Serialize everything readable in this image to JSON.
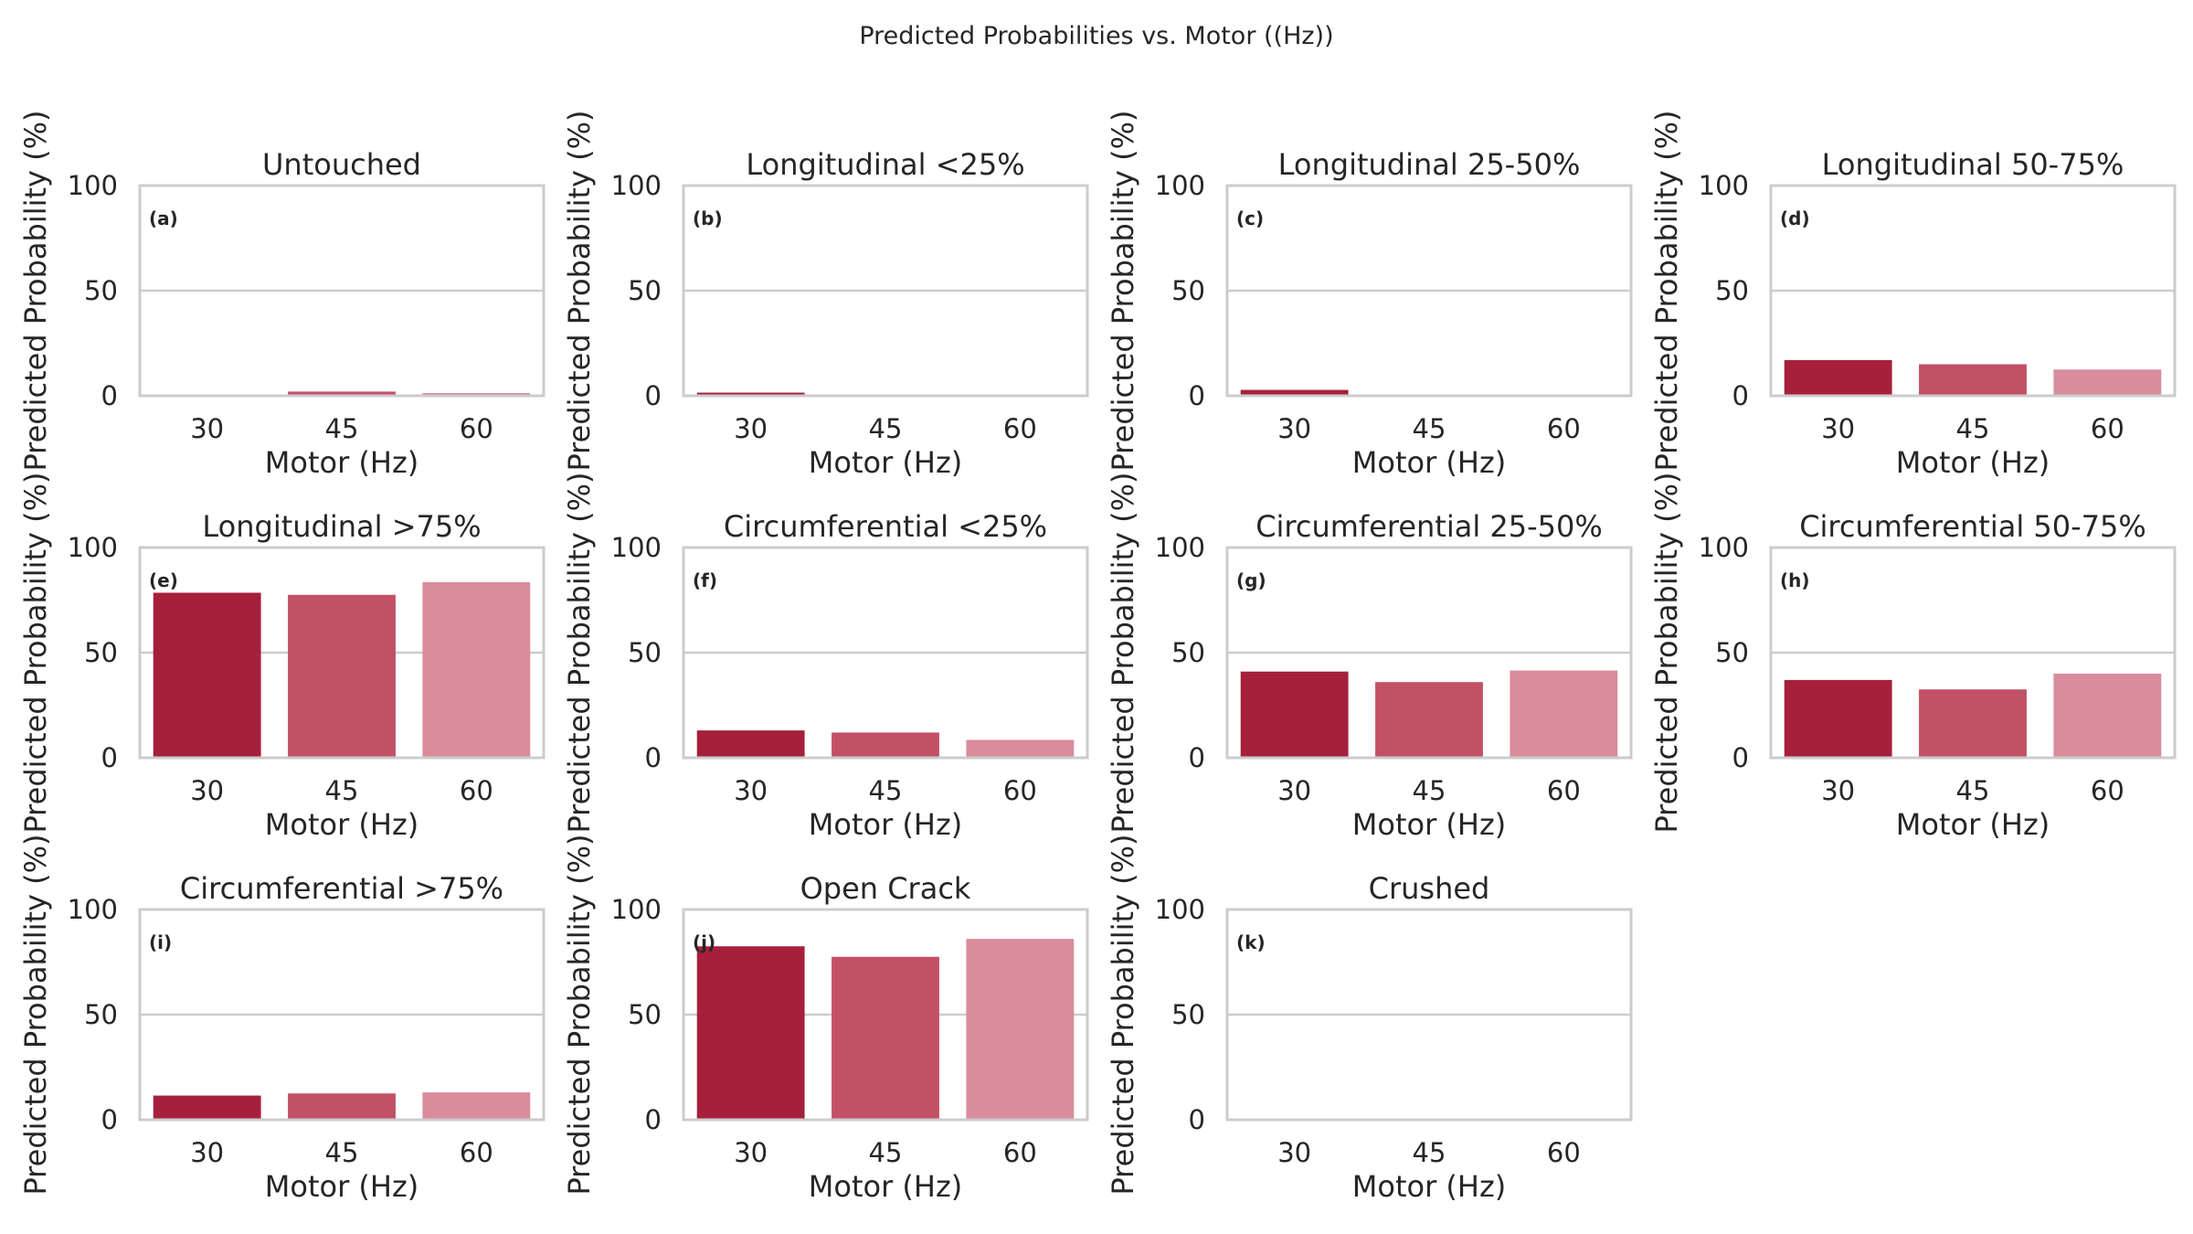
{
  "figure": {
    "suptitle": "Predicted Probabilities vs. Motor ((Hz))"
  },
  "chart_data": [
    {
      "type": "bar",
      "title": "Untouched",
      "panel_label": "(a)",
      "xlabel": "Motor (Hz)",
      "ylabel": "Predicted Probability (%)",
      "categories": [
        "30",
        "45",
        "60"
      ],
      "values": [
        0.4,
        2.0,
        1.3
      ],
      "ylim": [
        0,
        100
      ],
      "yticks": [
        0,
        50,
        100
      ],
      "grid": true,
      "colors": [
        "#a6203c",
        "#c25166",
        "#d98c9c"
      ]
    },
    {
      "type": "bar",
      "title": "Longitudinal <25%",
      "panel_label": "(b)",
      "xlabel": "Motor (Hz)",
      "ylabel": "Predicted Probability (%)",
      "categories": [
        "30",
        "45",
        "60"
      ],
      "values": [
        1.5,
        0.3,
        0.3
      ],
      "ylim": [
        0,
        100
      ],
      "yticks": [
        0,
        50,
        100
      ],
      "grid": true,
      "colors": [
        "#a6203c",
        "#c25166",
        "#d98c9c"
      ]
    },
    {
      "type": "bar",
      "title": "Longitudinal 25-50%",
      "panel_label": "(c)",
      "xlabel": "Motor (Hz)",
      "ylabel": "Predicted Probability (%)",
      "categories": [
        "30",
        "45",
        "60"
      ],
      "values": [
        2.8,
        0.2,
        0.2
      ],
      "ylim": [
        0,
        100
      ],
      "yticks": [
        0,
        50,
        100
      ],
      "grid": true,
      "colors": [
        "#a6203c",
        "#c25166",
        "#d98c9c"
      ]
    },
    {
      "type": "bar",
      "title": "Longitudinal 50-75%",
      "panel_label": "(d)",
      "xlabel": "Motor (Hz)",
      "ylabel": "Predicted Probability (%)",
      "categories": [
        "30",
        "45",
        "60"
      ],
      "values": [
        17,
        15,
        12.5
      ],
      "ylim": [
        0,
        100
      ],
      "yticks": [
        0,
        50,
        100
      ],
      "grid": true,
      "colors": [
        "#a6203c",
        "#c25166",
        "#d98c9c"
      ]
    },
    {
      "type": "bar",
      "title": "Longitudinal >75%",
      "panel_label": "(e)",
      "xlabel": "Motor (Hz)",
      "ylabel": "Predicted Probability (%)",
      "categories": [
        "30",
        "45",
        "60"
      ],
      "values": [
        78.5,
        77.5,
        83.5
      ],
      "ylim": [
        0,
        100
      ],
      "yticks": [
        0,
        50,
        100
      ],
      "grid": true,
      "colors": [
        "#a6203c",
        "#c25166",
        "#d98c9c"
      ]
    },
    {
      "type": "bar",
      "title": "Circumferential <25%",
      "panel_label": "(f)",
      "xlabel": "Motor (Hz)",
      "ylabel": "Predicted Probability (%)",
      "categories": [
        "30",
        "45",
        "60"
      ],
      "values": [
        13,
        12,
        8.5
      ],
      "ylim": [
        0,
        100
      ],
      "yticks": [
        0,
        50,
        100
      ],
      "grid": true,
      "colors": [
        "#a6203c",
        "#c25166",
        "#d98c9c"
      ]
    },
    {
      "type": "bar",
      "title": "Circumferential 25-50%",
      "panel_label": "(g)",
      "xlabel": "Motor (Hz)",
      "ylabel": "Predicted Probability (%)",
      "categories": [
        "30",
        "45",
        "60"
      ],
      "values": [
        41,
        36,
        41.5
      ],
      "ylim": [
        0,
        100
      ],
      "yticks": [
        0,
        50,
        100
      ],
      "grid": true,
      "colors": [
        "#a6203c",
        "#c25166",
        "#d98c9c"
      ]
    },
    {
      "type": "bar",
      "title": "Circumferential 50-75%",
      "panel_label": "(h)",
      "xlabel": "Motor (Hz)",
      "ylabel": "Predicted Probability (%)",
      "categories": [
        "30",
        "45",
        "60"
      ],
      "values": [
        37,
        32.5,
        40
      ],
      "ylim": [
        0,
        100
      ],
      "yticks": [
        0,
        50,
        100
      ],
      "grid": true,
      "colors": [
        "#a6203c",
        "#c25166",
        "#d98c9c"
      ]
    },
    {
      "type": "bar",
      "title": "Circumferential >75%",
      "panel_label": "(i)",
      "xlabel": "Motor (Hz)",
      "ylabel": "Predicted Probability (%)",
      "categories": [
        "30",
        "45",
        "60"
      ],
      "values": [
        11.5,
        12.5,
        13
      ],
      "ylim": [
        0,
        100
      ],
      "yticks": [
        0,
        50,
        100
      ],
      "grid": true,
      "colors": [
        "#a6203c",
        "#c25166",
        "#d98c9c"
      ]
    },
    {
      "type": "bar",
      "title": "Open Crack",
      "panel_label": "(j)",
      "xlabel": "Motor (Hz)",
      "ylabel": "Predicted Probability (%)",
      "categories": [
        "30",
        "45",
        "60"
      ],
      "values": [
        82.5,
        77.5,
        86
      ],
      "ylim": [
        0,
        100
      ],
      "yticks": [
        0,
        50,
        100
      ],
      "grid": true,
      "colors": [
        "#a6203c",
        "#c25166",
        "#d98c9c"
      ]
    },
    {
      "type": "bar",
      "title": "Crushed",
      "panel_label": "(k)",
      "xlabel": "Motor (Hz)",
      "ylabel": "Predicted Probability (%)",
      "categories": [
        "30",
        "45",
        "60"
      ],
      "values": [
        0,
        0,
        0
      ],
      "ylim": [
        0,
        100
      ],
      "yticks": [
        0,
        50,
        100
      ],
      "grid": true,
      "colors": [
        "#a6203c",
        "#c25166",
        "#d98c9c"
      ]
    }
  ]
}
